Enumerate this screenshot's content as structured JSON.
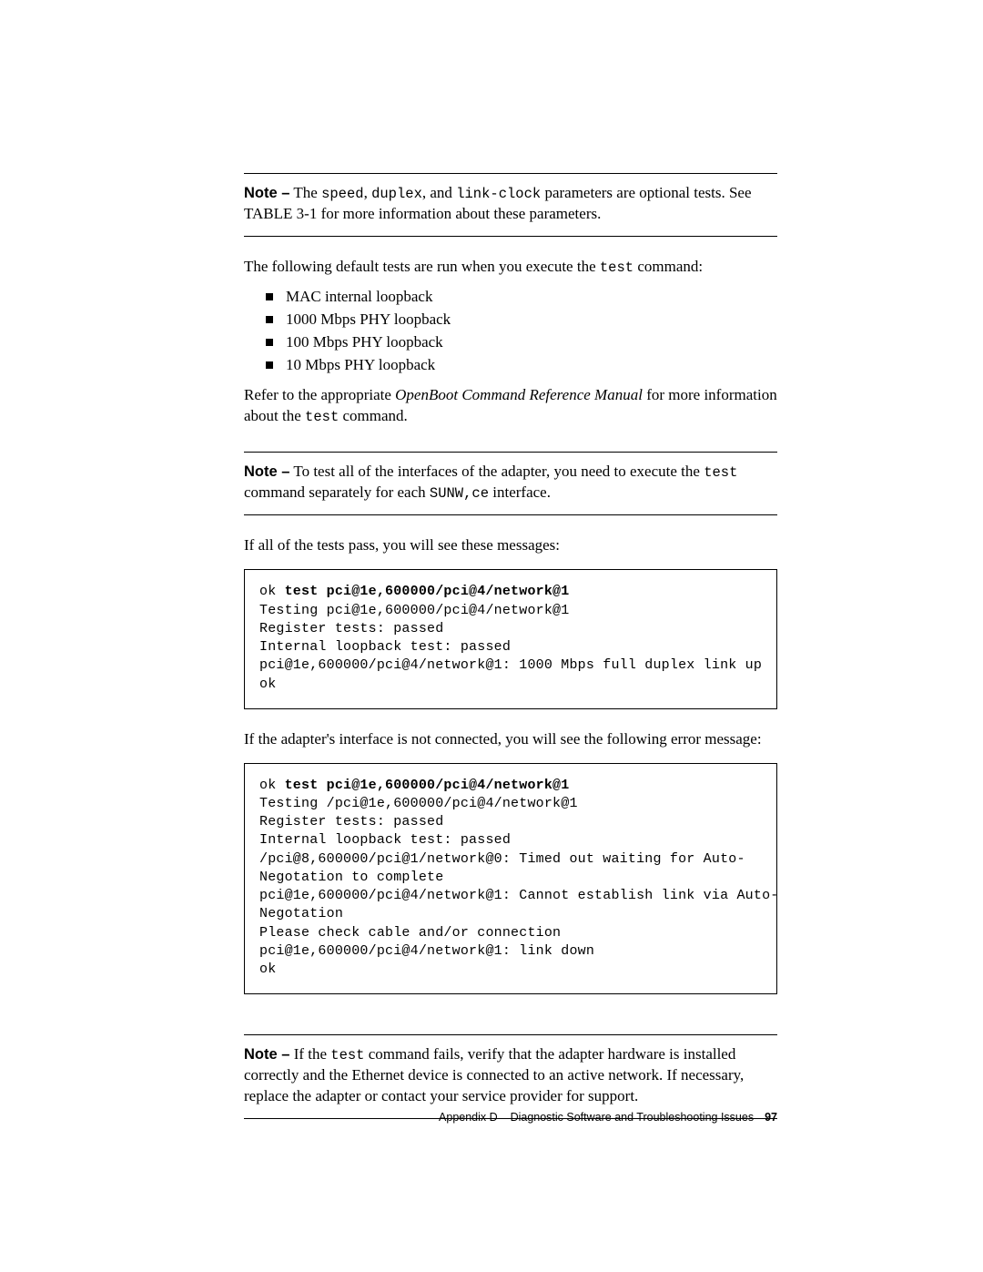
{
  "notes": {
    "label": "Note –",
    "n1_pre": " The ",
    "n1_c1": "speed",
    "n1_m1": ", ",
    "n1_c2": "duplex",
    "n1_m2": ", and ",
    "n1_c3": "link-clock",
    "n1_post1": " parameters are optional tests. See",
    "n1_line2a": "TABLE 3-1",
    "n1_line2b": " for more information about these parameters.",
    "n2_pre": " To test all of the interfaces of the adapter, you need to execute the ",
    "n2_c1": "test",
    "n2_line2a": "command separately for each ",
    "n2_c2": "SUNW,ce",
    "n2_line2b": " interface.",
    "n3_pre": " If the ",
    "n3_c1": "test",
    "n3_post": " command fails, verify that the adapter hardware is installed",
    "n3_l2": "correctly and the Ethernet device is connected to an active network. If necessary,",
    "n3_l3": "replace the adapter or contact your service provider for support."
  },
  "paras": {
    "p1a": "The following default tests are run when you execute the ",
    "p1c": "test",
    "p1b": " command:",
    "p2a": "Refer to the appropriate ",
    "p2i": "OpenBoot Command Reference Manual",
    "p2b": " for more information",
    "p2c": "about the ",
    "p2code": "test",
    "p2d": " command.",
    "p3": "If all of the tests pass, you will see these messages:",
    "p4": "If the adapter's interface is not connected, you will see the following error message:"
  },
  "bullets": {
    "b1": "MAC internal loopback",
    "b2": "1000 Mbps PHY loopback",
    "b3": "100 Mbps PHY loopback",
    "b4": "10 Mbps PHY loopback"
  },
  "code1": {
    "prompt": "ok ",
    "cmd": "test pci@1e,600000/pci@4/network@1",
    "l2": "Testing pci@1e,600000/pci@4/network@1",
    "l3": "Register tests: passed",
    "l4": "Internal loopback test: passed",
    "l5": "pci@1e,600000/pci@4/network@1: 1000 Mbps full duplex link up",
    "l6": "ok"
  },
  "code2": {
    "prompt": "ok ",
    "cmd": "test pci@1e,600000/pci@4/network@1",
    "l2": "Testing /pci@1e,600000/pci@4/network@1",
    "l3": "Register tests: passed",
    "l4": "Internal loopback test: passed",
    "l5": "/pci@8,600000/pci@1/network@0: Timed out waiting for Auto-",
    "l6": "Negotation to complete",
    "l7": "pci@1e,600000/pci@4/network@1: Cannot establish link via Auto-",
    "l8": "Negotation",
    "l9": "Please check cable and/or connection",
    "l10": "pci@1e,600000/pci@4/network@1: link down",
    "l11": "ok"
  },
  "footer": {
    "left": "Appendix D",
    "mid": "Diagnostic Software and Troubleshooting Issues",
    "page": "97"
  }
}
